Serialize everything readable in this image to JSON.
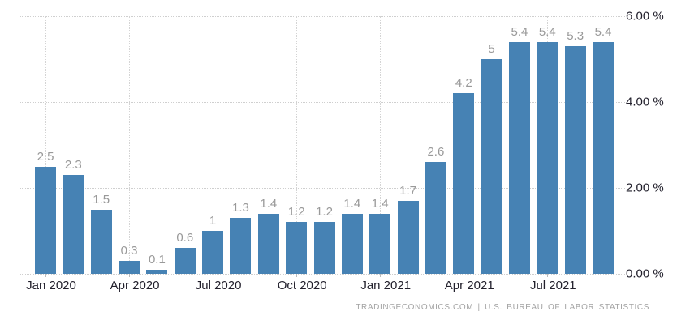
{
  "chart_data": {
    "type": "bar",
    "title": "",
    "xlabel": "",
    "ylabel": "",
    "values": [
      2.5,
      2.3,
      1.5,
      0.3,
      0.1,
      0.6,
      1,
      1.3,
      1.4,
      1.2,
      1.2,
      1.4,
      1.4,
      1.7,
      2.6,
      4.2,
      5,
      5.4,
      5.4,
      5.3,
      5.4
    ],
    "bar_labels": [
      "2.5",
      "2.3",
      "1.5",
      "0.3",
      "0.1",
      "0.6",
      "1",
      "1.3",
      "1.4",
      "1.2",
      "1.2",
      "1.4",
      "1.4",
      "1.7",
      "2.6",
      "4.2",
      "5",
      "5.4",
      "5.4",
      "5.3",
      "5.4"
    ],
    "x_tick_labels": [
      "Jan 2020",
      "Apr 2020",
      "Jul 2020",
      "Oct 2020",
      "Jan 2021",
      "Apr 2021",
      "Jul 2021"
    ],
    "x_tick_bar_indices": [
      0,
      3,
      6,
      9,
      12,
      15,
      18
    ],
    "y_tick_labels": [
      "6.00 %",
      "4.00 %",
      "2.00 %",
      "0.00 %"
    ],
    "y_tick_values": [
      6,
      4,
      2,
      0
    ],
    "ylim": [
      0,
      6
    ],
    "grid": "dotted",
    "legend": "none",
    "bar_color": "#4682b4",
    "grid_color": "#d0d0d0",
    "value_label_color": "#999999",
    "axis_label_color": "#22202c"
  },
  "footer": {
    "attribution": "TRADINGECONOMICS.COM | U.S. BUREAU OF LABOR STATISTICS"
  }
}
